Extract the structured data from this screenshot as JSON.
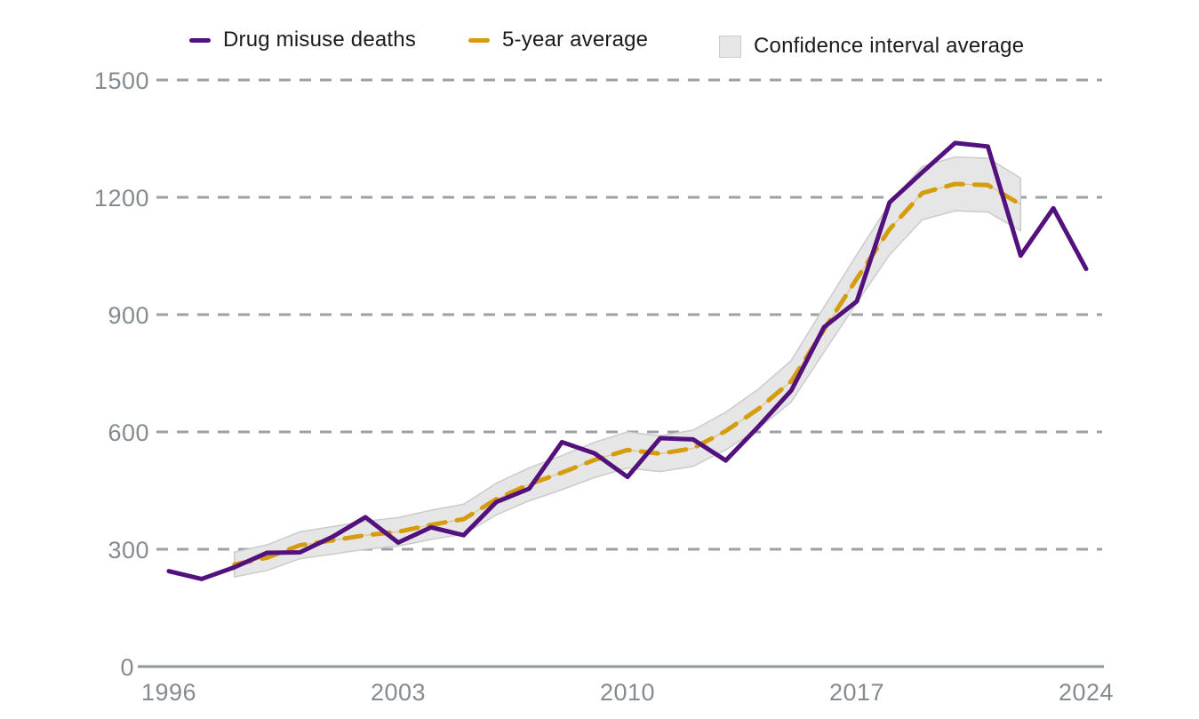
{
  "legend": {
    "items": [
      {
        "label": "Drug misuse deaths",
        "swatch": "purple-line"
      },
      {
        "label": "5-year average",
        "swatch": "orange-dashed-line"
      },
      {
        "label": "Confidence interval average",
        "swatch": "gray-band-square"
      }
    ]
  },
  "colors": {
    "deaths_line": "#53117d",
    "average_line": "#d59c0e",
    "band_fill": "#e6e6e7",
    "band_edge": "#cbcbcb",
    "gridline": "#9ba1a6",
    "axis_line": "#8f969b",
    "tick_text": "#848b91",
    "legend_text": "#1b1b1b"
  },
  "chart_data": {
    "type": "line",
    "title": "",
    "xlabel": "",
    "ylabel": "",
    "xlim": [
      1996,
      2024
    ],
    "ylim": [
      0,
      1500
    ],
    "x_ticks": [
      1996,
      2003,
      2010,
      2017,
      2024
    ],
    "y_ticks": [
      0,
      300,
      600,
      900,
      1200,
      1500
    ],
    "grid": "horizontal-dashed",
    "legend_position": "top",
    "series": [
      {
        "name": "Drug misuse deaths",
        "style": "solid-line",
        "years": [
          1996,
          1997,
          1998,
          1999,
          2000,
          2001,
          2002,
          2003,
          2004,
          2005,
          2006,
          2007,
          2008,
          2009,
          2010,
          2011,
          2012,
          2013,
          2014,
          2015,
          2016,
          2017,
          2018,
          2019,
          2020,
          2021,
          2022,
          2023,
          2024
        ],
        "values": [
          244,
          224,
          254,
          291,
          292,
          332,
          382,
          317,
          356,
          336,
          421,
          455,
          574,
          545,
          485,
          584,
          581,
          527,
          614,
          706,
          868,
          934,
          1187,
          1264,
          1339,
          1330,
          1051,
          1172,
          1017
        ]
      },
      {
        "name": "5-year average",
        "style": "dashed-line",
        "years": [
          1998,
          1999,
          2000,
          2001,
          2002,
          2003,
          2004,
          2005,
          2006,
          2007,
          2008,
          2009,
          2010,
          2011,
          2012,
          2013,
          2014,
          2015,
          2016,
          2017,
          2018,
          2019,
          2020,
          2021,
          2022
        ],
        "values": [
          261.0,
          278.6,
          310.2,
          322.8,
          335.8,
          344.6,
          362.4,
          377.0,
          428.4,
          466.2,
          496.0,
          528.6,
          553.8,
          544.4,
          558.2,
          602.4,
          659.2,
          729.8,
          861.8,
          991.8,
          1118.4,
          1210.8,
          1234.2,
          1231.2,
          1181.8
        ]
      },
      {
        "name": "Confidence interval average",
        "style": "band",
        "years": [
          1998,
          1999,
          2000,
          2001,
          2002,
          2003,
          2004,
          2005,
          2006,
          2007,
          2008,
          2009,
          2010,
          2011,
          2012,
          2013,
          2014,
          2015,
          2016,
          2017,
          2018,
          2019,
          2020,
          2021,
          2022
        ],
        "low": [
          229.3,
          245.9,
          275.7,
          287.6,
          299.9,
          308.2,
          325.1,
          338.9,
          387.8,
          423.9,
          452.3,
          483.5,
          507.7,
          498.7,
          511.9,
          554.3,
          608.9,
          676.9,
          804.3,
          930.1,
          1052.9,
          1142.6,
          1165.3,
          1162.4,
          1114.4
        ],
        "high": [
          292.7,
          311.3,
          344.7,
          358.0,
          371.7,
          381.0,
          399.7,
          415.1,
          469.0,
          508.5,
          539.7,
          573.7,
          599.9,
          590.1,
          604.5,
          650.5,
          709.5,
          782.8,
          919.3,
          1053.5,
          1184.0,
          1279.0,
          1303.1,
          1300.0,
          1249.2
        ]
      }
    ]
  }
}
